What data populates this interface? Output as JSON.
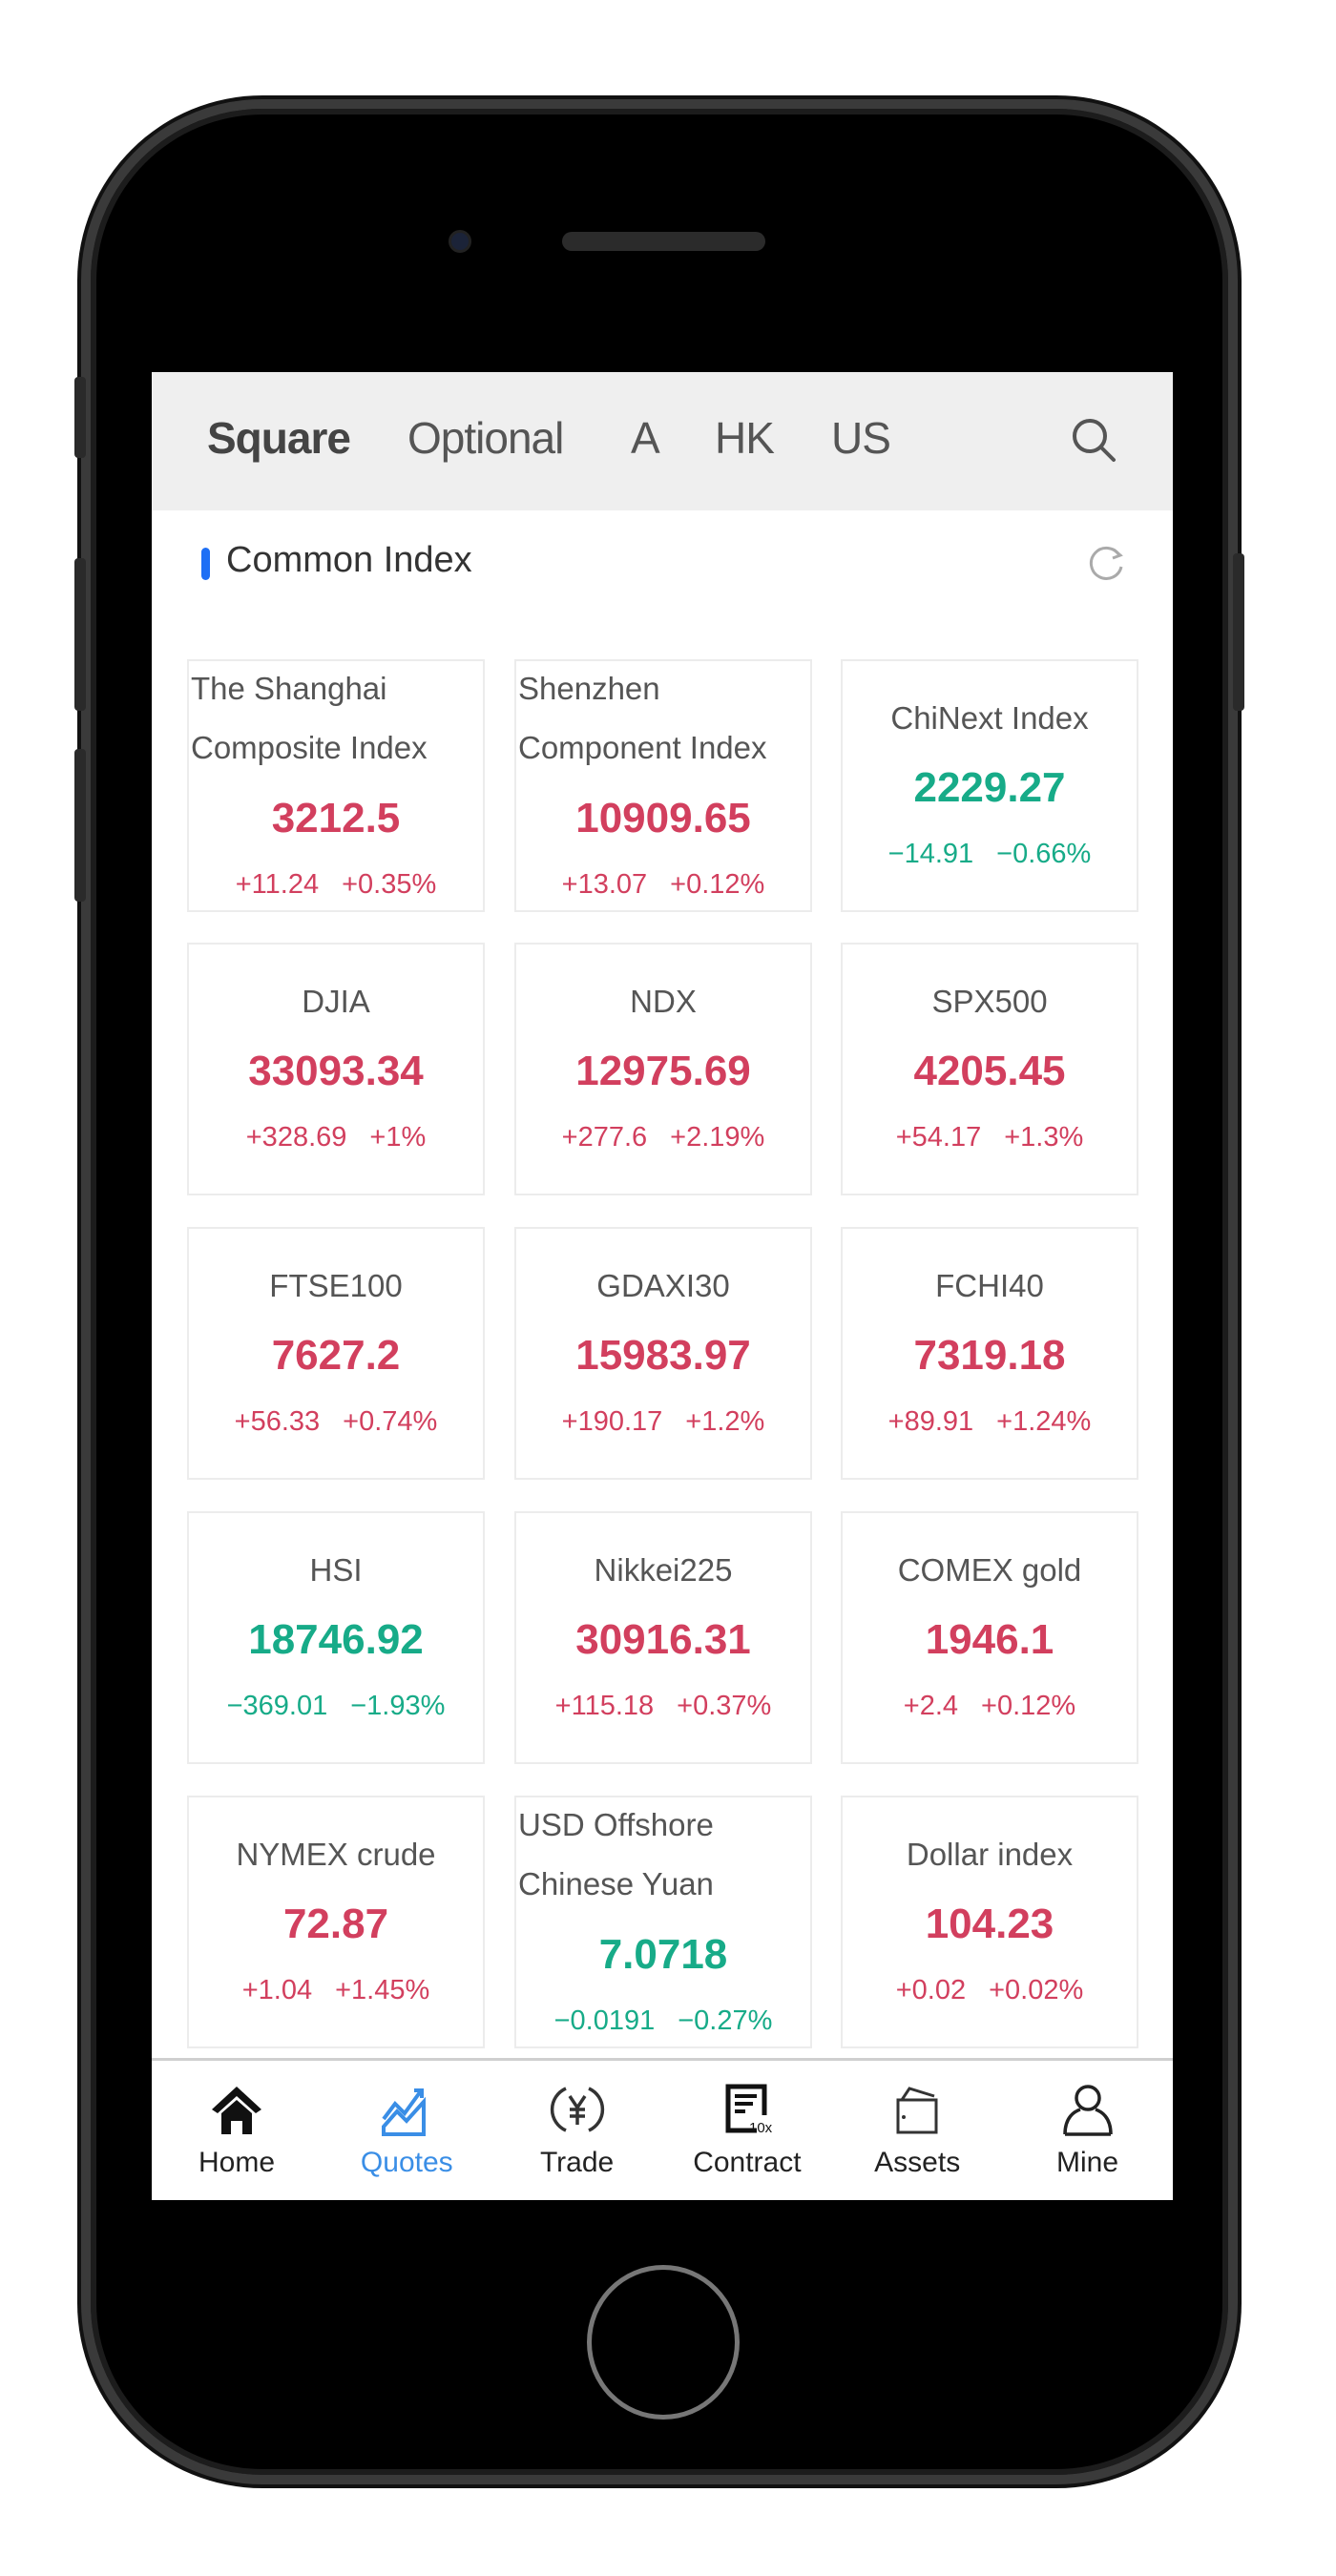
{
  "header": {
    "tabs": [
      {
        "label": "Square",
        "active": true
      },
      {
        "label": "Optional"
      },
      {
        "label": "A"
      },
      {
        "label": "HK"
      },
      {
        "label": "US"
      }
    ],
    "search_icon": "search-icon"
  },
  "section": {
    "title": "Common Index",
    "refresh_icon": "refresh-icon",
    "accent": "#1e6ff5"
  },
  "colors": {
    "up": "#d23f5e",
    "down": "#17ab88",
    "active_nav": "#3a8ee6"
  },
  "cards": [
    {
      "name": "The Shanghai\nComposite Index",
      "price": "3212.5",
      "change": "+11.24",
      "pct": "+0.35%",
      "dir": "up"
    },
    {
      "name": "Shenzhen\nComponent Index",
      "price": "10909.65",
      "change": "+13.07",
      "pct": "+0.12%",
      "dir": "up"
    },
    {
      "name": "ChiNext Index",
      "price": "2229.27",
      "change": "−14.91",
      "pct": "−0.66%",
      "dir": "down"
    },
    {
      "name": "DJIA",
      "price": "33093.34",
      "change": "+328.69",
      "pct": "+1%",
      "dir": "up"
    },
    {
      "name": "NDX",
      "price": "12975.69",
      "change": "+277.6",
      "pct": "+2.19%",
      "dir": "up"
    },
    {
      "name": "SPX500",
      "price": "4205.45",
      "change": "+54.17",
      "pct": "+1.3%",
      "dir": "up"
    },
    {
      "name": "FTSE100",
      "price": "7627.2",
      "change": "+56.33",
      "pct": "+0.74%",
      "dir": "up"
    },
    {
      "name": "GDAXI30",
      "price": "15983.97",
      "change": "+190.17",
      "pct": "+1.2%",
      "dir": "up"
    },
    {
      "name": "FCHI40",
      "price": "7319.18",
      "change": "+89.91",
      "pct": "+1.24%",
      "dir": "up"
    },
    {
      "name": "HSI",
      "price": "18746.92",
      "change": "−369.01",
      "pct": "−1.93%",
      "dir": "down"
    },
    {
      "name": "Nikkei225",
      "price": "30916.31",
      "change": "+115.18",
      "pct": "+0.37%",
      "dir": "up"
    },
    {
      "name": "COMEX gold",
      "price": "1946.1",
      "change": "+2.4",
      "pct": "+0.12%",
      "dir": "up"
    },
    {
      "name": "NYMEX crude",
      "price": "72.87",
      "change": "+1.04",
      "pct": "+1.45%",
      "dir": "up"
    },
    {
      "name": "USD Offshore\nChinese Yuan",
      "price": "7.0718",
      "change": "−0.0191",
      "pct": "−0.27%",
      "dir": "down"
    },
    {
      "name": "Dollar index",
      "price": "104.23",
      "change": "+0.02",
      "pct": "+0.02%",
      "dir": "up"
    }
  ],
  "nav": [
    {
      "label": "Home",
      "icon": "home-icon"
    },
    {
      "label": "Quotes",
      "icon": "chart-trend-icon",
      "active": true
    },
    {
      "label": "Trade",
      "icon": "yen-exchange-icon"
    },
    {
      "label": "Contract",
      "icon": "contract-10x-icon"
    },
    {
      "label": "Assets",
      "icon": "wallet-icon"
    },
    {
      "label": "Mine",
      "icon": "user-icon"
    }
  ]
}
